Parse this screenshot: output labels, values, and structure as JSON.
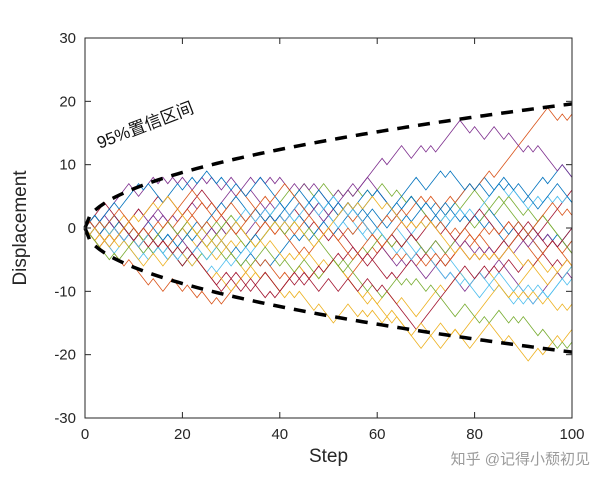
{
  "chart_data": {
    "type": "line",
    "title": "",
    "xlabel": "Step",
    "ylabel": "Displacement",
    "xlim": [
      0,
      100
    ],
    "ylim": [
      -30,
      30
    ],
    "xticks": [
      0,
      20,
      40,
      60,
      80,
      100
    ],
    "yticks": [
      -30,
      -20,
      -10,
      0,
      10,
      20,
      30
    ],
    "grid": false,
    "legend": "none",
    "annotation": {
      "text": "95%置信区间",
      "rotation_deg": -21,
      "anchor_step": 3,
      "anchor_displacement": 12.5
    },
    "envelope": {
      "meaning": "95% confidence interval of a simple random walk",
      "multiplier": 1.96,
      "formula": "displacement = ±1.96·√step",
      "value_at_step_100": 19.6,
      "line_style": "dashed",
      "color": "#000000",
      "line_width": 3.5
    },
    "random_walks": {
      "count": 24,
      "steps": 100,
      "step_size": 1,
      "start_value": 0,
      "approx_final_range": [
        -23,
        26
      ],
      "colors": [
        "#0072BD",
        "#D95319",
        "#EDB120",
        "#7E2F8E",
        "#77AC30",
        "#4DBEEE",
        "#A2142F"
      ],
      "line_width": 0.8
    },
    "axis_color": "#262626",
    "background": "#ffffff"
  },
  "watermark": {
    "text": "知乎 @记得小颓初见",
    "color": "#9b9b9b"
  }
}
